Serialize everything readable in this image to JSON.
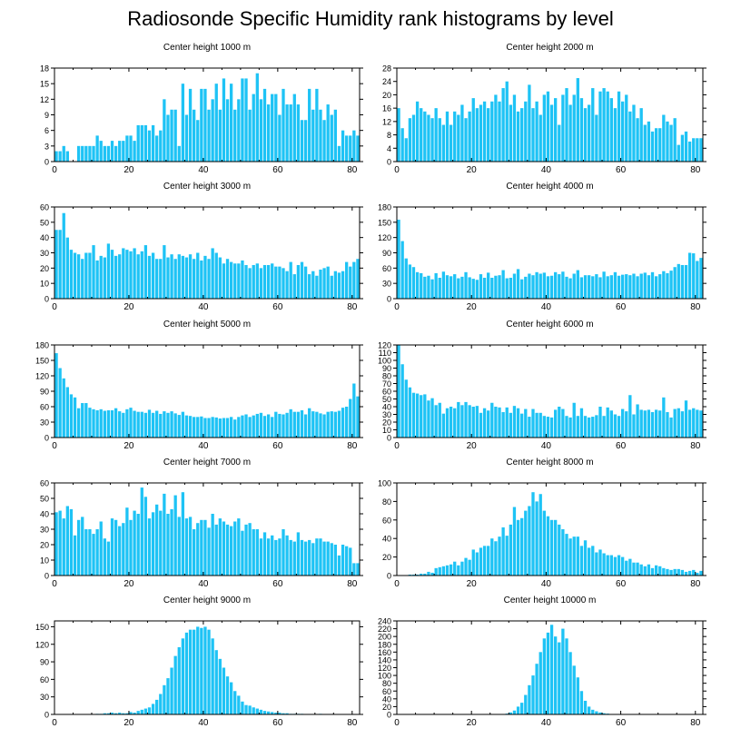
{
  "page_title": "Radiosonde Specific Humidity rank histograms by level",
  "bar_color": "#1ec3f5",
  "chart_data": [
    {
      "type": "bar",
      "title": "Center height 1000 m",
      "xlim": [
        0,
        82
      ],
      "ylim": [
        0,
        18
      ],
      "xticks": [
        0,
        20,
        40,
        60,
        80
      ],
      "yticks": [
        0,
        3,
        6,
        9,
        12,
        15,
        18
      ],
      "values": [
        2,
        2,
        3,
        2,
        0,
        0,
        3,
        3,
        3,
        3,
        3,
        5,
        4,
        3,
        3,
        4,
        3,
        4,
        4,
        5,
        5,
        4,
        7,
        7,
        7,
        6,
        7,
        5,
        6,
        12,
        9,
        10,
        10,
        3,
        15,
        9,
        14,
        10,
        8,
        14,
        14,
        10,
        12,
        15,
        10,
        16,
        12,
        15,
        10,
        12,
        16,
        16,
        10,
        13,
        17,
        12,
        14,
        11,
        13,
        13,
        9,
        14,
        11,
        11,
        13,
        11,
        8,
        8,
        14,
        10,
        14,
        10,
        8,
        11,
        9,
        10,
        3,
        6,
        5,
        5,
        6,
        5
      ]
    },
    {
      "type": "bar",
      "title": "Center height 2000 m",
      "xlim": [
        0,
        82
      ],
      "ylim": [
        0,
        28
      ],
      "xticks": [
        0,
        20,
        40,
        60,
        80
      ],
      "yticks": [
        0,
        4,
        8,
        12,
        16,
        20,
        24,
        28
      ],
      "values": [
        16,
        10,
        7,
        13,
        14,
        18,
        16,
        15,
        14,
        13,
        16,
        13,
        11,
        15,
        11,
        15,
        14,
        17,
        13,
        15,
        19,
        16,
        17,
        18,
        16,
        18,
        20,
        18,
        22,
        24,
        17,
        20,
        15,
        16,
        18,
        23,
        16,
        18,
        14,
        20,
        21,
        17,
        19,
        11,
        20,
        22,
        17,
        20,
        25,
        19,
        16,
        17,
        22,
        14,
        21,
        22,
        21,
        19,
        16,
        21,
        18,
        20,
        15,
        17,
        13,
        16,
        11,
        12,
        9,
        10,
        10,
        14,
        12,
        11,
        13,
        5,
        8,
        9,
        6,
        7,
        7,
        7
      ]
    },
    {
      "type": "bar",
      "title": "Center height 3000 m",
      "xlim": [
        0,
        82
      ],
      "ylim": [
        0,
        60
      ],
      "xticks": [
        0,
        20,
        40,
        60,
        80
      ],
      "yticks": [
        0,
        10,
        20,
        30,
        40,
        50,
        60
      ],
      "values": [
        45,
        45,
        56,
        40,
        32,
        30,
        29,
        26,
        30,
        30,
        35,
        25,
        28,
        27,
        36,
        32,
        28,
        29,
        33,
        32,
        31,
        33,
        29,
        31,
        35,
        28,
        30,
        26,
        26,
        35,
        27,
        29,
        26,
        29,
        28,
        27,
        29,
        26,
        30,
        25,
        28,
        26,
        33,
        30,
        27,
        23,
        26,
        24,
        23,
        23,
        25,
        22,
        20,
        22,
        23,
        20,
        22,
        22,
        23,
        21,
        21,
        20,
        18,
        24,
        16,
        22,
        24,
        21,
        16,
        18,
        15,
        19,
        20,
        21,
        15,
        18,
        17,
        18,
        24,
        21,
        24,
        26
      ]
    },
    {
      "type": "bar",
      "title": "Center height 4000 m",
      "xlim": [
        0,
        82
      ],
      "ylim": [
        0,
        180
      ],
      "xticks": [
        0,
        20,
        40,
        60,
        80
      ],
      "yticks": [
        0,
        30,
        60,
        90,
        120,
        150,
        180
      ],
      "values": [
        155,
        113,
        79,
        67,
        62,
        52,
        50,
        43,
        45,
        38,
        50,
        41,
        53,
        46,
        44,
        48,
        40,
        43,
        52,
        42,
        39,
        37,
        48,
        41,
        51,
        41,
        45,
        46,
        56,
        40,
        41,
        49,
        58,
        38,
        43,
        49,
        46,
        52,
        49,
        51,
        44,
        45,
        52,
        48,
        53,
        43,
        40,
        49,
        56,
        42,
        46,
        46,
        44,
        48,
        42,
        53,
        44,
        46,
        52,
        45,
        47,
        48,
        46,
        49,
        44,
        49,
        51,
        46,
        52,
        44,
        48,
        54,
        50,
        55,
        62,
        68,
        66,
        66,
        90,
        89,
        74,
        80
      ]
    },
    {
      "type": "bar",
      "title": "Center height 5000 m",
      "xlim": [
        0,
        82
      ],
      "ylim": [
        0,
        180
      ],
      "xticks": [
        0,
        20,
        40,
        60,
        80
      ],
      "yticks": [
        0,
        30,
        60,
        90,
        120,
        150,
        180
      ],
      "values": [
        164,
        135,
        115,
        98,
        84,
        78,
        57,
        67,
        67,
        58,
        55,
        53,
        55,
        52,
        53,
        53,
        57,
        51,
        48,
        55,
        58,
        52,
        50,
        50,
        48,
        54,
        48,
        52,
        46,
        51,
        48,
        51,
        47,
        44,
        50,
        43,
        42,
        40,
        40,
        41,
        38,
        38,
        40,
        39,
        37,
        38,
        38,
        40,
        35,
        40,
        43,
        45,
        40,
        43,
        46,
        48,
        42,
        45,
        40,
        50,
        46,
        45,
        48,
        55,
        50,
        50,
        53,
        45,
        57,
        51,
        50,
        47,
        45,
        50,
        51,
        50,
        52,
        58,
        60,
        75,
        105,
        80
      ]
    },
    {
      "type": "bar",
      "title": "Center height 6000 m",
      "xlim": [
        0,
        82
      ],
      "ylim": [
        0,
        120
      ],
      "xticks": [
        0,
        20,
        40,
        60,
        80
      ],
      "yticks": [
        0,
        10,
        20,
        30,
        40,
        50,
        60,
        70,
        80,
        90,
        100,
        110,
        120
      ],
      "values": [
        123,
        95,
        75,
        65,
        58,
        57,
        55,
        56,
        48,
        51,
        42,
        45,
        31,
        38,
        40,
        38,
        46,
        42,
        46,
        42,
        40,
        41,
        32,
        38,
        35,
        45,
        40,
        39,
        33,
        39,
        32,
        41,
        38,
        31,
        37,
        27,
        37,
        32,
        32,
        28,
        27,
        26,
        36,
        40,
        37,
        28,
        26,
        45,
        28,
        38,
        28,
        26,
        27,
        29,
        40,
        28,
        39,
        35,
        30,
        28,
        37,
        34,
        55,
        30,
        43,
        36,
        35,
        36,
        33,
        36,
        35,
        52,
        33,
        26,
        37,
        38,
        34,
        48,
        36,
        38,
        36,
        35
      ]
    },
    {
      "type": "bar",
      "title": "Center height 7000 m",
      "xlim": [
        0,
        82
      ],
      "ylim": [
        0,
        60
      ],
      "xticks": [
        0,
        20,
        40,
        60,
        80
      ],
      "yticks": [
        0,
        10,
        20,
        30,
        40,
        50,
        60
      ],
      "values": [
        41,
        42,
        37,
        45,
        43,
        26,
        36,
        38,
        30,
        30,
        27,
        30,
        35,
        24,
        22,
        37,
        36,
        32,
        34,
        44,
        36,
        42,
        40,
        57,
        51,
        37,
        41,
        46,
        42,
        53,
        40,
        43,
        52,
        38,
        54,
        37,
        38,
        30,
        34,
        36,
        36,
        31,
        40,
        33,
        37,
        35,
        33,
        32,
        35,
        37,
        29,
        33,
        34,
        30,
        30,
        24,
        28,
        24,
        26,
        23,
        24,
        30,
        26,
        23,
        22,
        28,
        23,
        22,
        23,
        21,
        24,
        24,
        22,
        22,
        21,
        20,
        13,
        20,
        19,
        18,
        8,
        8
      ]
    },
    {
      "type": "bar",
      "title": "Center height 8000 m",
      "xlim": [
        0,
        82
      ],
      "ylim": [
        0,
        100
      ],
      "xticks": [
        0,
        20,
        40,
        60,
        80
      ],
      "yticks": [
        0,
        20,
        40,
        60,
        80,
        100
      ],
      "values": [
        0,
        0,
        0,
        1,
        1,
        1,
        2,
        2,
        4,
        3,
        8,
        9,
        10,
        11,
        12,
        15,
        11,
        15,
        19,
        17,
        28,
        25,
        30,
        32,
        32,
        40,
        37,
        42,
        52,
        43,
        55,
        74,
        60,
        62,
        70,
        75,
        90,
        80,
        88,
        70,
        64,
        60,
        60,
        55,
        50,
        45,
        40,
        42,
        42,
        32,
        38,
        30,
        32,
        25,
        28,
        24,
        22,
        22,
        20,
        22,
        20,
        16,
        18,
        14,
        14,
        12,
        10,
        12,
        8,
        11,
        10,
        8,
        7,
        6,
        7,
        7,
        6,
        4,
        5,
        6,
        3,
        5
      ]
    },
    {
      "type": "bar",
      "title": "Center height 9000 m",
      "xlim": [
        0,
        82
      ],
      "ylim": [
        0,
        160
      ],
      "xticks": [
        0,
        20,
        40,
        60,
        80
      ],
      "yticks": [
        0,
        30,
        60,
        90,
        120,
        150
      ],
      "values": [
        0,
        0,
        0,
        0,
        0,
        0,
        0,
        0,
        0,
        0,
        0,
        1,
        1,
        2,
        2,
        3,
        2,
        3,
        2,
        2,
        4,
        3,
        6,
        8,
        10,
        12,
        18,
        25,
        35,
        50,
        62,
        80,
        100,
        115,
        130,
        140,
        145,
        145,
        150,
        148,
        150,
        145,
        130,
        110,
        95,
        80,
        65,
        55,
        40,
        32,
        22,
        16,
        15,
        12,
        10,
        8,
        6,
        5,
        4,
        3,
        3,
        2,
        2,
        1,
        1,
        1,
        1,
        0,
        0,
        0,
        0,
        1,
        0,
        0,
        0,
        0,
        0,
        0,
        0,
        0,
        0,
        0
      ]
    },
    {
      "type": "bar",
      "title": "Center height 10000 m",
      "xlim": [
        0,
        82
      ],
      "ylim": [
        0,
        240
      ],
      "xticks": [
        0,
        20,
        40,
        60,
        80
      ],
      "yticks": [
        0,
        20,
        40,
        60,
        80,
        100,
        120,
        140,
        160,
        180,
        200,
        220,
        240
      ],
      "values": [
        0,
        0,
        0,
        0,
        0,
        0,
        0,
        0,
        0,
        0,
        0,
        0,
        0,
        0,
        0,
        0,
        0,
        0,
        0,
        0,
        0,
        0,
        0,
        0,
        0,
        0,
        0,
        0,
        0,
        2,
        5,
        10,
        20,
        30,
        50,
        75,
        100,
        130,
        160,
        195,
        210,
        230,
        200,
        185,
        220,
        195,
        160,
        125,
        95,
        60,
        35,
        20,
        12,
        8,
        5,
        3,
        2,
        1,
        0,
        0,
        0,
        0,
        0,
        0,
        0,
        0,
        0,
        0,
        0,
        0,
        0,
        0,
        0,
        0,
        0,
        0,
        0,
        0,
        0,
        0,
        0,
        0
      ]
    }
  ]
}
